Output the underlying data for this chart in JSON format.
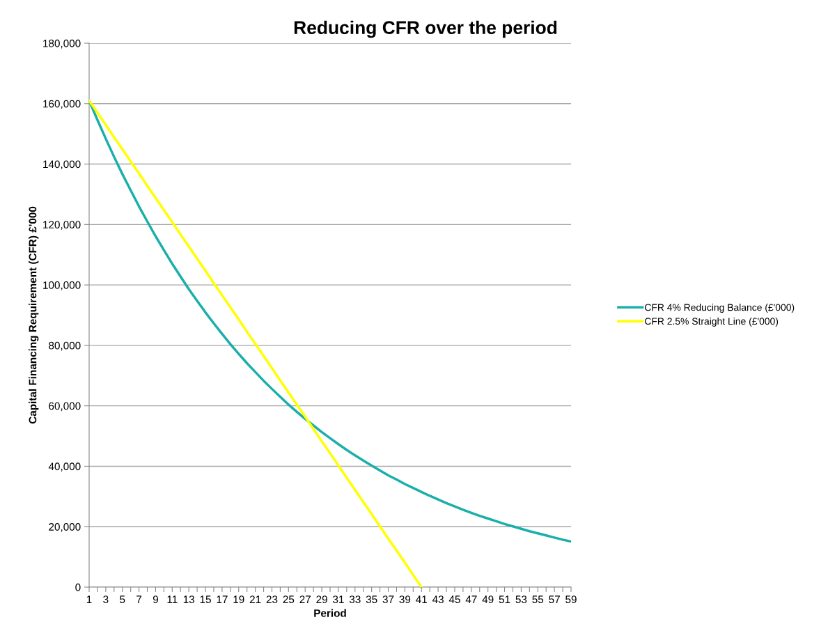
{
  "chart_data": {
    "type": "line",
    "title": "Reducing CFR over the period",
    "xlabel": "Period",
    "ylabel": "Capital Financing Requirement (CFR) £'000",
    "categories": [
      "1",
      null,
      "3",
      null,
      "5",
      null,
      "7",
      null,
      "9",
      null,
      "11",
      null,
      "13",
      null,
      "15",
      null,
      "17",
      null,
      "19",
      null,
      "21",
      null,
      "23",
      null,
      "25",
      null,
      "27",
      null,
      "29",
      null,
      "31",
      null,
      "33",
      null,
      "35",
      null,
      "37",
      null,
      "39",
      null,
      "41",
      null,
      "43",
      null,
      "45",
      null,
      "47",
      null,
      "49",
      null,
      "51",
      null,
      "53",
      null,
      "55",
      null,
      "57",
      null,
      "59"
    ],
    "series": [
      {
        "name": "CFR 4% Reducing Balance (£'000)",
        "color": "#1aafaa",
        "values": [
          161000,
          154600,
          148400,
          142400,
          136700,
          131300,
          126000,
          121000,
          116100,
          111500,
          107000,
          102800,
          98600,
          94700,
          90900,
          87300,
          83800,
          80400,
          77200,
          74100,
          71200,
          68300,
          65600,
          63000,
          60400,
          58000,
          55700,
          53500,
          51300,
          49300,
          47300,
          45400,
          43600,
          41900,
          40200,
          38600,
          37000,
          35600,
          34100,
          32800,
          31500,
          30200,
          29000,
          27800,
          26700,
          25600,
          24600,
          23600,
          22700,
          21800,
          20900,
          20100,
          19300,
          18500,
          17800,
          17100,
          16400,
          15700,
          15100
        ]
      },
      {
        "name": "CFR 2.5% Straight Line (£'000)",
        "color": "#ffff00",
        "values": [
          161000,
          157000,
          153000,
          148900,
          144900,
          140900,
          136900,
          132800,
          128800,
          124800,
          120800,
          116700,
          112700,
          108700,
          104700,
          100600,
          96600,
          92600,
          88600,
          84500,
          80500,
          76500,
          72500,
          68400,
          64400,
          60400,
          56400,
          52300,
          48300,
          44300,
          40300,
          36200,
          32200,
          28200,
          24200,
          20100,
          16100,
          12100,
          8100,
          4000,
          0,
          null,
          null,
          null,
          null,
          null,
          null,
          null,
          null,
          null,
          null,
          null,
          null,
          null,
          null,
          null,
          null,
          null,
          null
        ]
      }
    ],
    "ylim": [
      0,
      180000
    ],
    "yticks": [
      {
        "value": 0,
        "label": "0"
      },
      {
        "value": 20000,
        "label": "20,000"
      },
      {
        "value": 40000,
        "label": "40,000"
      },
      {
        "value": 60000,
        "label": "60,000"
      },
      {
        "value": 80000,
        "label": "80,000"
      },
      {
        "value": 100000,
        "label": "100,000"
      },
      {
        "value": 120000,
        "label": "120,000"
      },
      {
        "value": 140000,
        "label": "140,000"
      },
      {
        "value": 160000,
        "label": "160,000"
      },
      {
        "value": 180000,
        "label": "180,000"
      }
    ],
    "grid": "y",
    "legend": "right",
    "marker": "none",
    "line_style": "solid"
  }
}
